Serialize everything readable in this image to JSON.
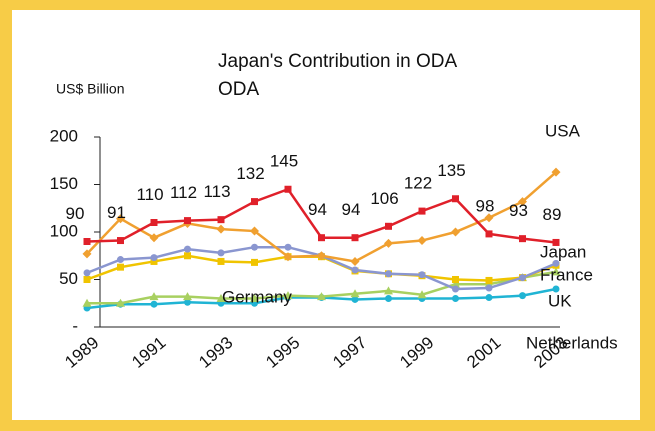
{
  "chart_data": {
    "type": "line",
    "title": "Japan's Contribution in ODA",
    "subtitle": "ODA",
    "y_label": "US$ Billion",
    "categories": [
      "1989",
      null,
      "1991",
      null,
      "1993",
      null,
      "1995",
      null,
      "1997",
      null,
      "1999",
      null,
      "2001",
      null,
      "2003"
    ],
    "ylim": [
      0,
      200
    ],
    "yticks": [
      {
        "value": 0,
        "label": "-"
      },
      50,
      100,
      150,
      200
    ],
    "series": [
      {
        "name": "Japan",
        "color": "#e0202a",
        "marker": "square",
        "data_labels": true,
        "values": [
          90,
          91,
          110,
          112,
          113,
          132,
          145,
          94,
          94,
          106,
          122,
          135,
          98,
          93,
          89
        ]
      },
      {
        "name": "USA",
        "color": "#f0a030",
        "marker": "diamond",
        "values": [
          77,
          114,
          94,
          109,
          103,
          101,
          74,
          75,
          69,
          88,
          91,
          100,
          115,
          132,
          163
        ]
      },
      {
        "name": "France",
        "color": "#8a96d0",
        "marker": "circle",
        "values": [
          57,
          71,
          73,
          82,
          78,
          84,
          84,
          75,
          60,
          56,
          55,
          40,
          41,
          52,
          67
        ]
      },
      {
        "name": "Germany",
        "color": "#f0c400",
        "marker": "square",
        "values": [
          50,
          63,
          69,
          75,
          69,
          68,
          74,
          74,
          59,
          56,
          54,
          50,
          49,
          52,
          65
        ]
      },
      {
        "name": "Netherlands",
        "color": "#a8d060",
        "marker": "triangle",
        "values": [
          25,
          25,
          32,
          32,
          30,
          30,
          33,
          32,
          35,
          38,
          34,
          45,
          45,
          52,
          58
        ]
      },
      {
        "name": "UK",
        "color": "#20b4d4",
        "marker": "circle",
        "values": [
          20,
          24,
          24,
          26,
          25,
          25,
          31,
          31,
          29,
          30,
          30,
          30,
          31,
          33,
          40
        ]
      }
    ]
  }
}
